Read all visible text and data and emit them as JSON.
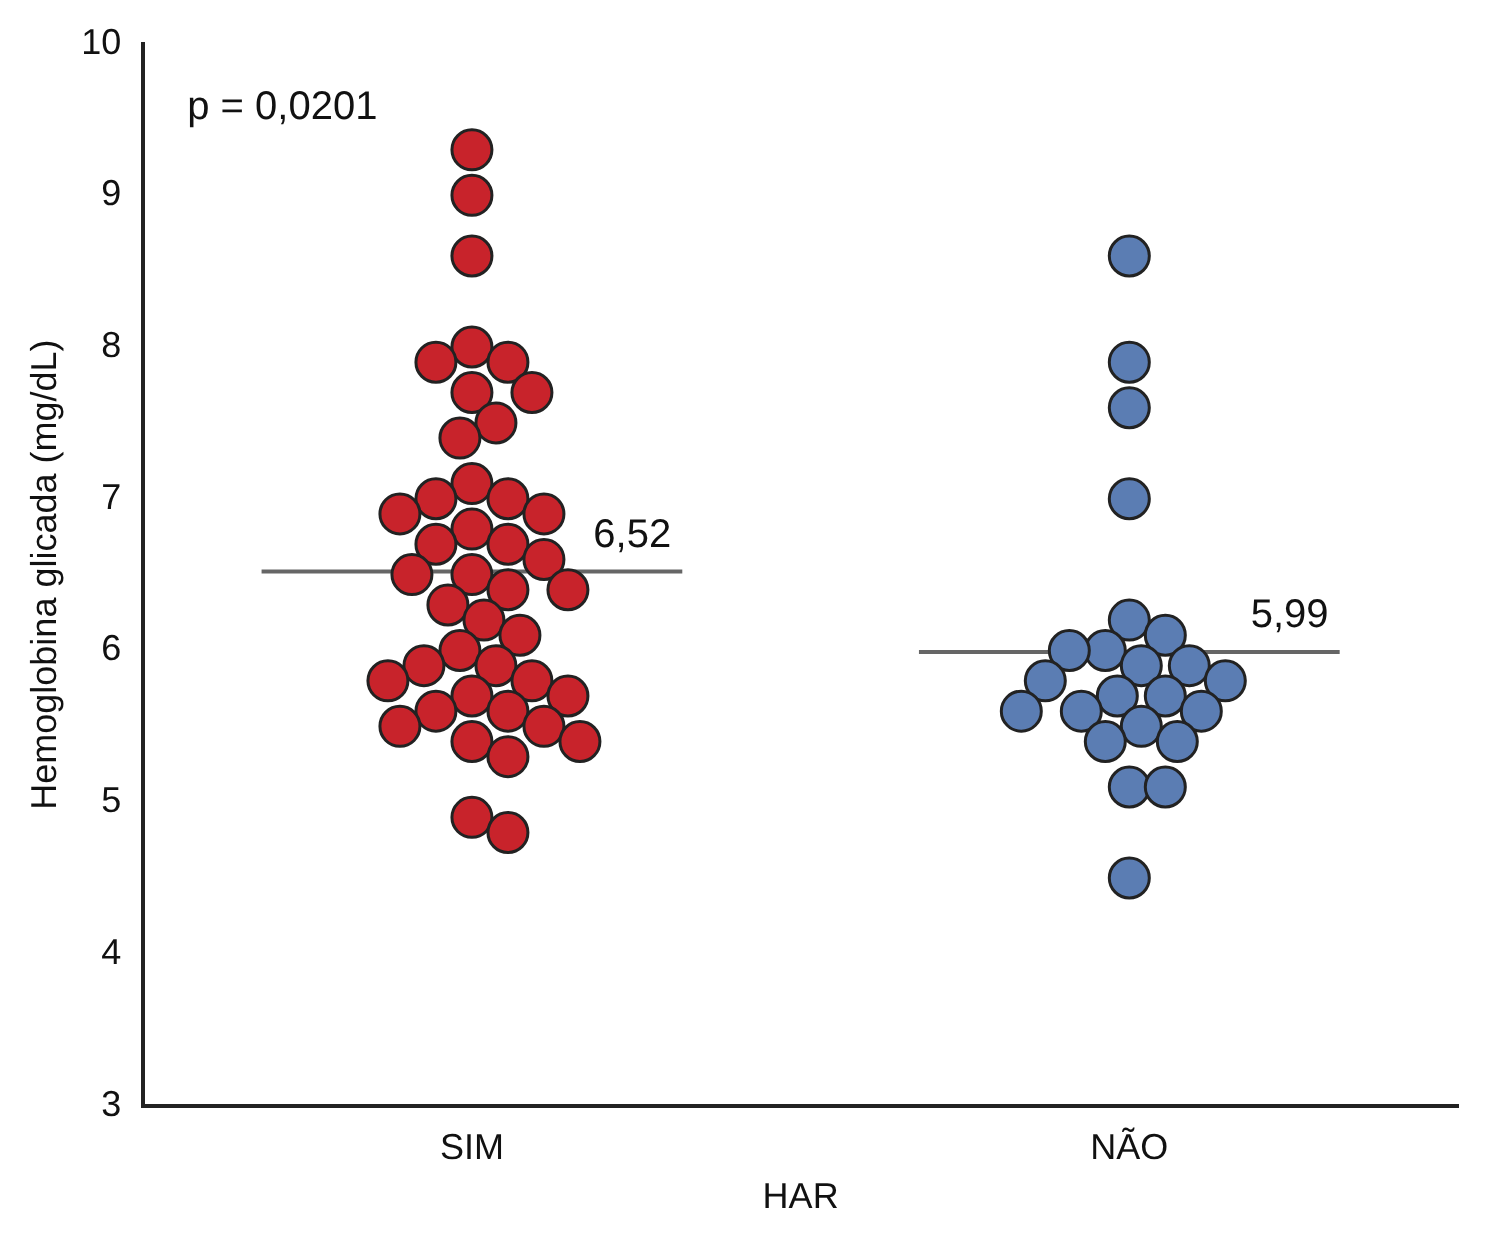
{
  "chart_data": {
    "type": "scatter",
    "xlabel": "HAR",
    "ylabel": "Hemoglobina glicada (mg/dL)",
    "categories": [
      "SIM",
      "NÃO"
    ],
    "series": [
      {
        "color": "#c8232b",
        "x": [
          "SIM",
          "SIM",
          "SIM",
          "SIM",
          "SIM",
          "SIM",
          "SIM",
          "SIM",
          "SIM",
          "SIM",
          "SIM",
          "SIM",
          "SIM",
          "SIM",
          "SIM",
          "SIM",
          "SIM",
          "SIM",
          "SIM",
          "SIM",
          "SIM",
          "SIM",
          "SIM",
          "SIM",
          "SIM",
          "SIM",
          "SIM",
          "SIM",
          "SIM",
          "SIM",
          "SIM",
          "SIM",
          "SIM",
          "SIM",
          "SIM",
          "SIM",
          "SIM",
          "SIM",
          "SIM",
          "SIM",
          "SIM",
          "SIM"
        ],
        "values": [
          9.3,
          9.0,
          8.6,
          8.0,
          7.9,
          7.9,
          7.7,
          7.7,
          7.5,
          7.4,
          7.1,
          7.0,
          7.0,
          6.9,
          6.9,
          6.8,
          6.7,
          6.7,
          6.6,
          6.5,
          6.5,
          6.4,
          6.4,
          6.3,
          6.2,
          6.1,
          6.0,
          5.9,
          5.9,
          5.8,
          5.8,
          5.7,
          5.7,
          5.6,
          5.6,
          5.5,
          5.5,
          5.4,
          5.4,
          5.3,
          4.9,
          4.8
        ]
      },
      {
        "color": "#5b7db3",
        "x": [
          "NÃO",
          "NÃO",
          "NÃO",
          "NÃO",
          "NÃO",
          "NÃO",
          "NÃO",
          "NÃO",
          "NÃO",
          "NÃO",
          "NÃO",
          "NÃO",
          "NÃO",
          "NÃO",
          "NÃO",
          "NÃO",
          "NÃO",
          "NÃO",
          "NÃO",
          "NÃO",
          "NÃO",
          "NÃO",
          "NÃO"
        ],
        "values": [
          8.6,
          7.9,
          7.6,
          7.0,
          6.2,
          6.1,
          6.0,
          6.0,
          5.9,
          5.9,
          5.8,
          5.8,
          5.7,
          5.7,
          5.6,
          5.6,
          5.6,
          5.5,
          5.4,
          5.4,
          5.1,
          5.1,
          4.5
        ]
      }
    ],
    "marker": "circle",
    "ylim": [
      3,
      10
    ],
    "yticks": [
      3,
      4,
      5,
      6,
      7,
      8,
      9,
      10
    ],
    "grid": false,
    "legend": false,
    "ref_lines": [
      {
        "axis": "y",
        "value": 6.52,
        "label": "6,52",
        "color": "#666666"
      },
      {
        "axis": "y",
        "value": 5.99,
        "label": "5,99",
        "color": "#666666"
      }
    ],
    "annotations": [
      "p = 0,0201"
    ]
  }
}
